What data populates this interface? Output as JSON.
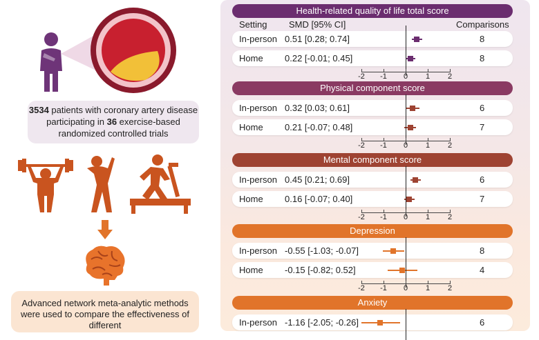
{
  "colors": {
    "purple": "#6b2d6f",
    "mauve": "#8a3a62",
    "brick": "#9e4332",
    "orange": "#e1742a",
    "figure_orange": "#c9541f",
    "figure_purple": "#6e3478"
  },
  "left": {
    "patient_figure_icon": "person-holding-chest-icon",
    "artery_icon": "artery-cross-section-icon",
    "patients_count": "3534",
    "patients_text_1": " patients with coronary artery disease participating in ",
    "trials_count": "36",
    "patients_text_2": " exercise-based randomized controlled trials",
    "exercise_icons": [
      "weightlifting-icon",
      "stretching-icon",
      "treadmill-icon"
    ],
    "down_arrow_icon": "arrow-down-icon",
    "brain_icon": "brain-icon",
    "meta_text": "Advanced network meta-analytic methods were used to compare the effectiveness of different"
  },
  "columns": {
    "setting": "Setting",
    "smd": "SMD [95% CI]",
    "comparisons": "Comparisons"
  },
  "axis_ticks": [
    "-2",
    "-1",
    "0",
    "1",
    "2"
  ],
  "chart_data": {
    "type": "forest",
    "xlim": [
      -2,
      2
    ],
    "sections": [
      {
        "title": "Health-related quality of life total score",
        "rows": [
          {
            "setting": "In-person",
            "label": "0.51 [0.28; 0.74]",
            "est": 0.51,
            "lo": 0.28,
            "hi": 0.74,
            "n": "8"
          },
          {
            "setting": "Home",
            "label": "0.22 [-0.01; 0.45]",
            "est": 0.22,
            "lo": -0.01,
            "hi": 0.45,
            "n": "8"
          }
        ]
      },
      {
        "title": "Physical component score",
        "rows": [
          {
            "setting": "In-person",
            "label": "0.32 [0.03; 0.61]",
            "est": 0.32,
            "lo": 0.03,
            "hi": 0.61,
            "n": "6"
          },
          {
            "setting": "Home",
            "label": "0.21 [-0.07; 0.48]",
            "est": 0.21,
            "lo": -0.07,
            "hi": 0.48,
            "n": "7"
          }
        ]
      },
      {
        "title": "Mental component score",
        "rows": [
          {
            "setting": "In-person",
            "label": "0.45 [0.21; 0.69]",
            "est": 0.45,
            "lo": 0.21,
            "hi": 0.69,
            "n": "6"
          },
          {
            "setting": "Home",
            "label": "0.16 [-0.07; 0.40]",
            "est": 0.16,
            "lo": -0.07,
            "hi": 0.4,
            "n": "7"
          }
        ]
      },
      {
        "title": "Depression",
        "rows": [
          {
            "setting": "In-person",
            "label": "-0.55 [-1.03; -0.07]",
            "est": -0.55,
            "lo": -1.03,
            "hi": -0.07,
            "n": "8"
          },
          {
            "setting": "Home",
            "label": "-0.15 [-0.82; 0.52]",
            "est": -0.15,
            "lo": -0.82,
            "hi": 0.52,
            "n": "4"
          }
        ]
      },
      {
        "title": "Anxiety",
        "rows": [
          {
            "setting": "In-person",
            "label": "-1.16 [-2.05; -0.26]",
            "est": -1.16,
            "lo": -2.05,
            "hi": -0.26,
            "n": "6"
          }
        ]
      }
    ]
  }
}
